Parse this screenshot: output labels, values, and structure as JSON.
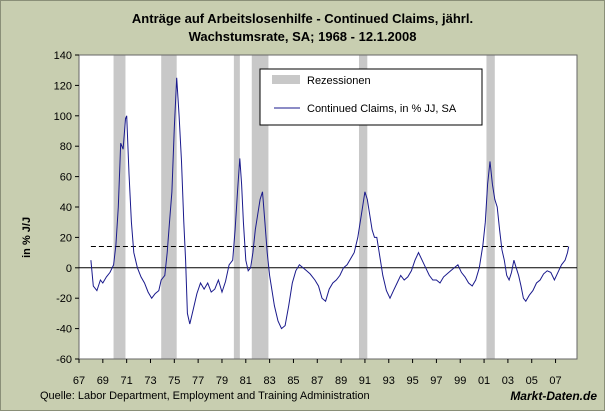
{
  "chart_data": {
    "type": "line",
    "title_line1": "Anträge auf Arbeitslosenhilfe - Continued Claims, jährl.",
    "title_line2": "Wachstumsrate, SA;  1968 - 12.1.2008",
    "ylabel": "in % J/J",
    "xlabel": "",
    "ylim": [
      -60,
      140
    ],
    "yticks": [
      -60,
      -40,
      -20,
      0,
      20,
      40,
      60,
      80,
      100,
      120,
      140
    ],
    "xlim": [
      1967,
      2008.8
    ],
    "xtick_labels": [
      "67",
      "69",
      "71",
      "73",
      "75",
      "77",
      "79",
      "81",
      "83",
      "85",
      "87",
      "89",
      "91",
      "93",
      "95",
      "97",
      "99",
      "01",
      "03",
      "05",
      "07"
    ],
    "recessions": [
      [
        1969.9,
        1970.9
      ],
      [
        1973.9,
        1975.2
      ],
      [
        1980.0,
        1980.5
      ],
      [
        1981.5,
        1982.9
      ],
      [
        1990.5,
        1991.2
      ],
      [
        2001.2,
        2001.9
      ]
    ],
    "reference_line": {
      "value": 14,
      "style": "dashed"
    },
    "legend": {
      "recession_label": "Rezessionen",
      "series_label": "Continued Claims, in % JJ, SA",
      "position": "top-right"
    },
    "series": [
      {
        "name": "Continued Claims, in % JJ, SA",
        "color": "#1a1a8c",
        "points": [
          [
            1968.0,
            5
          ],
          [
            1968.2,
            -12
          ],
          [
            1968.5,
            -15
          ],
          [
            1968.8,
            -8
          ],
          [
            1969.0,
            -10
          ],
          [
            1969.3,
            -6
          ],
          [
            1969.6,
            -3
          ],
          [
            1969.9,
            2
          ],
          [
            1970.1,
            15
          ],
          [
            1970.3,
            40
          ],
          [
            1970.5,
            82
          ],
          [
            1970.7,
            78
          ],
          [
            1970.9,
            98
          ],
          [
            1971.0,
            100
          ],
          [
            1971.2,
            62
          ],
          [
            1971.4,
            30
          ],
          [
            1971.6,
            10
          ],
          [
            1971.9,
            0
          ],
          [
            1972.2,
            -6
          ],
          [
            1972.5,
            -10
          ],
          [
            1972.8,
            -16
          ],
          [
            1973.1,
            -20
          ],
          [
            1973.4,
            -17
          ],
          [
            1973.7,
            -15
          ],
          [
            1973.9,
            -8
          ],
          [
            1974.2,
            -5
          ],
          [
            1974.4,
            10
          ],
          [
            1974.6,
            30
          ],
          [
            1974.8,
            50
          ],
          [
            1975.0,
            92
          ],
          [
            1975.2,
            125
          ],
          [
            1975.4,
            100
          ],
          [
            1975.6,
            70
          ],
          [
            1975.8,
            30
          ],
          [
            1975.95,
            5
          ],
          [
            1976.1,
            -30
          ],
          [
            1976.3,
            -37
          ],
          [
            1976.6,
            -27
          ],
          [
            1976.9,
            -17
          ],
          [
            1977.2,
            -10
          ],
          [
            1977.5,
            -14
          ],
          [
            1977.8,
            -10
          ],
          [
            1978.1,
            -16
          ],
          [
            1978.4,
            -14
          ],
          [
            1978.7,
            -8
          ],
          [
            1979.0,
            -16
          ],
          [
            1979.3,
            -9
          ],
          [
            1979.6,
            2
          ],
          [
            1979.9,
            5
          ],
          [
            1980.1,
            25
          ],
          [
            1980.3,
            50
          ],
          [
            1980.5,
            72
          ],
          [
            1980.65,
            55
          ],
          [
            1980.8,
            30
          ],
          [
            1981.0,
            5
          ],
          [
            1981.2,
            -2
          ],
          [
            1981.4,
            0
          ],
          [
            1981.6,
            10
          ],
          [
            1981.8,
            25
          ],
          [
            1982.0,
            35
          ],
          [
            1982.2,
            45
          ],
          [
            1982.4,
            50
          ],
          [
            1982.6,
            30
          ],
          [
            1982.8,
            10
          ],
          [
            1983.0,
            -5
          ],
          [
            1983.2,
            -15
          ],
          [
            1983.4,
            -25
          ],
          [
            1983.7,
            -35
          ],
          [
            1984.0,
            -40
          ],
          [
            1984.3,
            -38
          ],
          [
            1984.6,
            -25
          ],
          [
            1984.9,
            -10
          ],
          [
            1985.2,
            -2
          ],
          [
            1985.5,
            2
          ],
          [
            1985.8,
            0
          ],
          [
            1986.1,
            -2
          ],
          [
            1986.4,
            -4
          ],
          [
            1986.8,
            -8
          ],
          [
            1987.1,
            -12
          ],
          [
            1987.4,
            -20
          ],
          [
            1987.7,
            -22
          ],
          [
            1988.0,
            -14
          ],
          [
            1988.3,
            -10
          ],
          [
            1988.6,
            -8
          ],
          [
            1988.9,
            -5
          ],
          [
            1989.2,
            0
          ],
          [
            1989.5,
            2
          ],
          [
            1989.8,
            6
          ],
          [
            1990.1,
            10
          ],
          [
            1990.4,
            20
          ],
          [
            1990.7,
            35
          ],
          [
            1991.0,
            50
          ],
          [
            1991.2,
            45
          ],
          [
            1991.4,
            35
          ],
          [
            1991.6,
            25
          ],
          [
            1991.8,
            20
          ],
          [
            1992.0,
            20
          ],
          [
            1992.2,
            10
          ],
          [
            1992.5,
            -5
          ],
          [
            1992.8,
            -15
          ],
          [
            1993.1,
            -20
          ],
          [
            1993.4,
            -15
          ],
          [
            1993.7,
            -10
          ],
          [
            1994.0,
            -5
          ],
          [
            1994.3,
            -8
          ],
          [
            1994.6,
            -6
          ],
          [
            1994.9,
            -2
          ],
          [
            1995.2,
            5
          ],
          [
            1995.5,
            10
          ],
          [
            1995.8,
            5
          ],
          [
            1996.1,
            0
          ],
          [
            1996.4,
            -5
          ],
          [
            1996.7,
            -8
          ],
          [
            1997.0,
            -8
          ],
          [
            1997.3,
            -10
          ],
          [
            1997.6,
            -6
          ],
          [
            1997.9,
            -4
          ],
          [
            1998.2,
            -2
          ],
          [
            1998.5,
            0
          ],
          [
            1998.8,
            2
          ],
          [
            1999.1,
            -3
          ],
          [
            1999.4,
            -6
          ],
          [
            1999.7,
            -10
          ],
          [
            2000.0,
            -12
          ],
          [
            2000.3,
            -8
          ],
          [
            2000.6,
            0
          ],
          [
            2000.9,
            15
          ],
          [
            2001.1,
            30
          ],
          [
            2001.3,
            55
          ],
          [
            2001.5,
            70
          ],
          [
            2001.7,
            55
          ],
          [
            2001.9,
            45
          ],
          [
            2002.1,
            40
          ],
          [
            2002.3,
            25
          ],
          [
            2002.5,
            12
          ],
          [
            2002.7,
            5
          ],
          [
            2002.9,
            -5
          ],
          [
            2003.1,
            -8
          ],
          [
            2003.3,
            -3
          ],
          [
            2003.5,
            5
          ],
          [
            2003.7,
            0
          ],
          [
            2003.9,
            -5
          ],
          [
            2004.1,
            -12
          ],
          [
            2004.3,
            -20
          ],
          [
            2004.5,
            -22
          ],
          [
            2004.8,
            -18
          ],
          [
            2005.1,
            -15
          ],
          [
            2005.4,
            -10
          ],
          [
            2005.7,
            -8
          ],
          [
            2006.0,
            -4
          ],
          [
            2006.3,
            -2
          ],
          [
            2006.6,
            -3
          ],
          [
            2006.9,
            -8
          ],
          [
            2007.2,
            -3
          ],
          [
            2007.5,
            2
          ],
          [
            2007.8,
            5
          ],
          [
            2008.0,
            10
          ],
          [
            2008.1,
            14
          ]
        ]
      }
    ]
  },
  "footer": {
    "source": "Quelle: Labor Department, Employment and Training Administration",
    "brand": "Markt-Daten.de"
  }
}
